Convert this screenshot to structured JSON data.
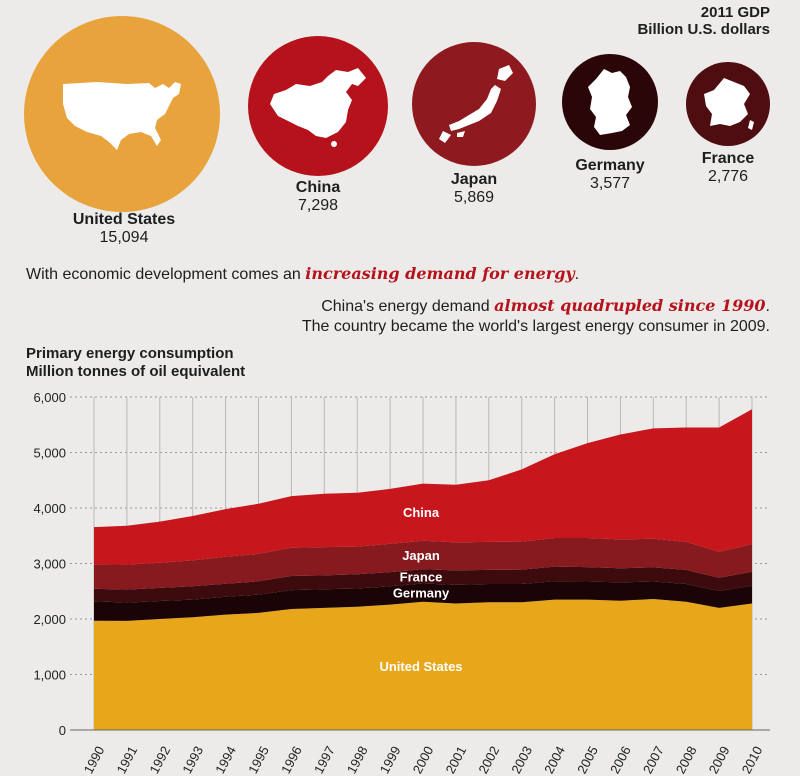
{
  "gdp": {
    "title_line1": "2011 GDP",
    "title_line2": "Billion U.S. dollars",
    "countries": [
      {
        "name": "United States",
        "value": "15,094",
        "color": "#e8a33d",
        "icon": "usa-map-icon"
      },
      {
        "name": "China",
        "value": "7,298",
        "color": "#b5121b",
        "icon": "china-map-icon"
      },
      {
        "name": "Japan",
        "value": "5,869",
        "color": "#8e1a1f",
        "icon": "japan-map-icon"
      },
      {
        "name": "Germany",
        "value": "3,577",
        "color": "#2a0608",
        "icon": "germany-map-icon"
      },
      {
        "name": "France",
        "value": "2,776",
        "color": "#4e0d10",
        "icon": "france-map-icon"
      }
    ]
  },
  "text": {
    "line1_pre": "With economic development comes an ",
    "line1_hl": "increasing demand for energy",
    "line1_post": ".",
    "line2_pre": "China's energy demand ",
    "line2_hl": "almost quadrupled since 1990",
    "line2_post": ".",
    "line3": "The country became the world's largest energy consumer in 2009."
  },
  "chart_data": {
    "type": "area",
    "stacked": true,
    "title": "Primary energy consumption",
    "subtitle": "Million tonnes of oil equivalent",
    "x": [
      1990,
      1991,
      1992,
      1993,
      1994,
      1995,
      1996,
      1997,
      1998,
      1999,
      2000,
      2001,
      2002,
      2003,
      2004,
      2005,
      2006,
      2007,
      2008,
      2009,
      2010
    ],
    "ylim": [
      0,
      6000
    ],
    "yticks": [
      0,
      1000,
      2000,
      3000,
      4000,
      5000,
      6000
    ],
    "ytick_labels": [
      "0",
      "1,000",
      "2,000",
      "3,000",
      "4,000",
      "5,000",
      "6,000"
    ],
    "grid": true,
    "series": [
      {
        "name": "United States",
        "color": "#e8a71b",
        "values": [
          1970,
          1965,
          2000,
          2030,
          2080,
          2110,
          2180,
          2200,
          2220,
          2260,
          2310,
          2280,
          2300,
          2300,
          2350,
          2350,
          2330,
          2360,
          2310,
          2200,
          2280
        ]
      },
      {
        "name": "Germany",
        "color": "#1a0406",
        "values": [
          350,
          330,
          325,
          320,
          320,
          330,
          340,
          335,
          330,
          330,
          330,
          335,
          330,
          330,
          330,
          325,
          330,
          315,
          320,
          305,
          320
        ]
      },
      {
        "name": "France",
        "color": "#3d0b0d",
        "values": [
          225,
          235,
          235,
          240,
          235,
          240,
          255,
          250,
          255,
          255,
          255,
          260,
          255,
          260,
          265,
          260,
          255,
          255,
          255,
          240,
          250
        ]
      },
      {
        "name": "Japan",
        "color": "#861a1f",
        "values": [
          440,
          450,
          455,
          465,
          485,
          495,
          510,
          510,
          500,
          510,
          515,
          505,
          505,
          505,
          515,
          525,
          520,
          515,
          505,
          465,
          500
        ]
      },
      {
        "name": "China",
        "color": "#c8161d",
        "values": [
          670,
          700,
          740,
          800,
          860,
          900,
          930,
          960,
          970,
          990,
          1030,
          1040,
          1110,
          1300,
          1510,
          1710,
          1890,
          1990,
          2060,
          2240,
          2430
        ]
      }
    ]
  }
}
